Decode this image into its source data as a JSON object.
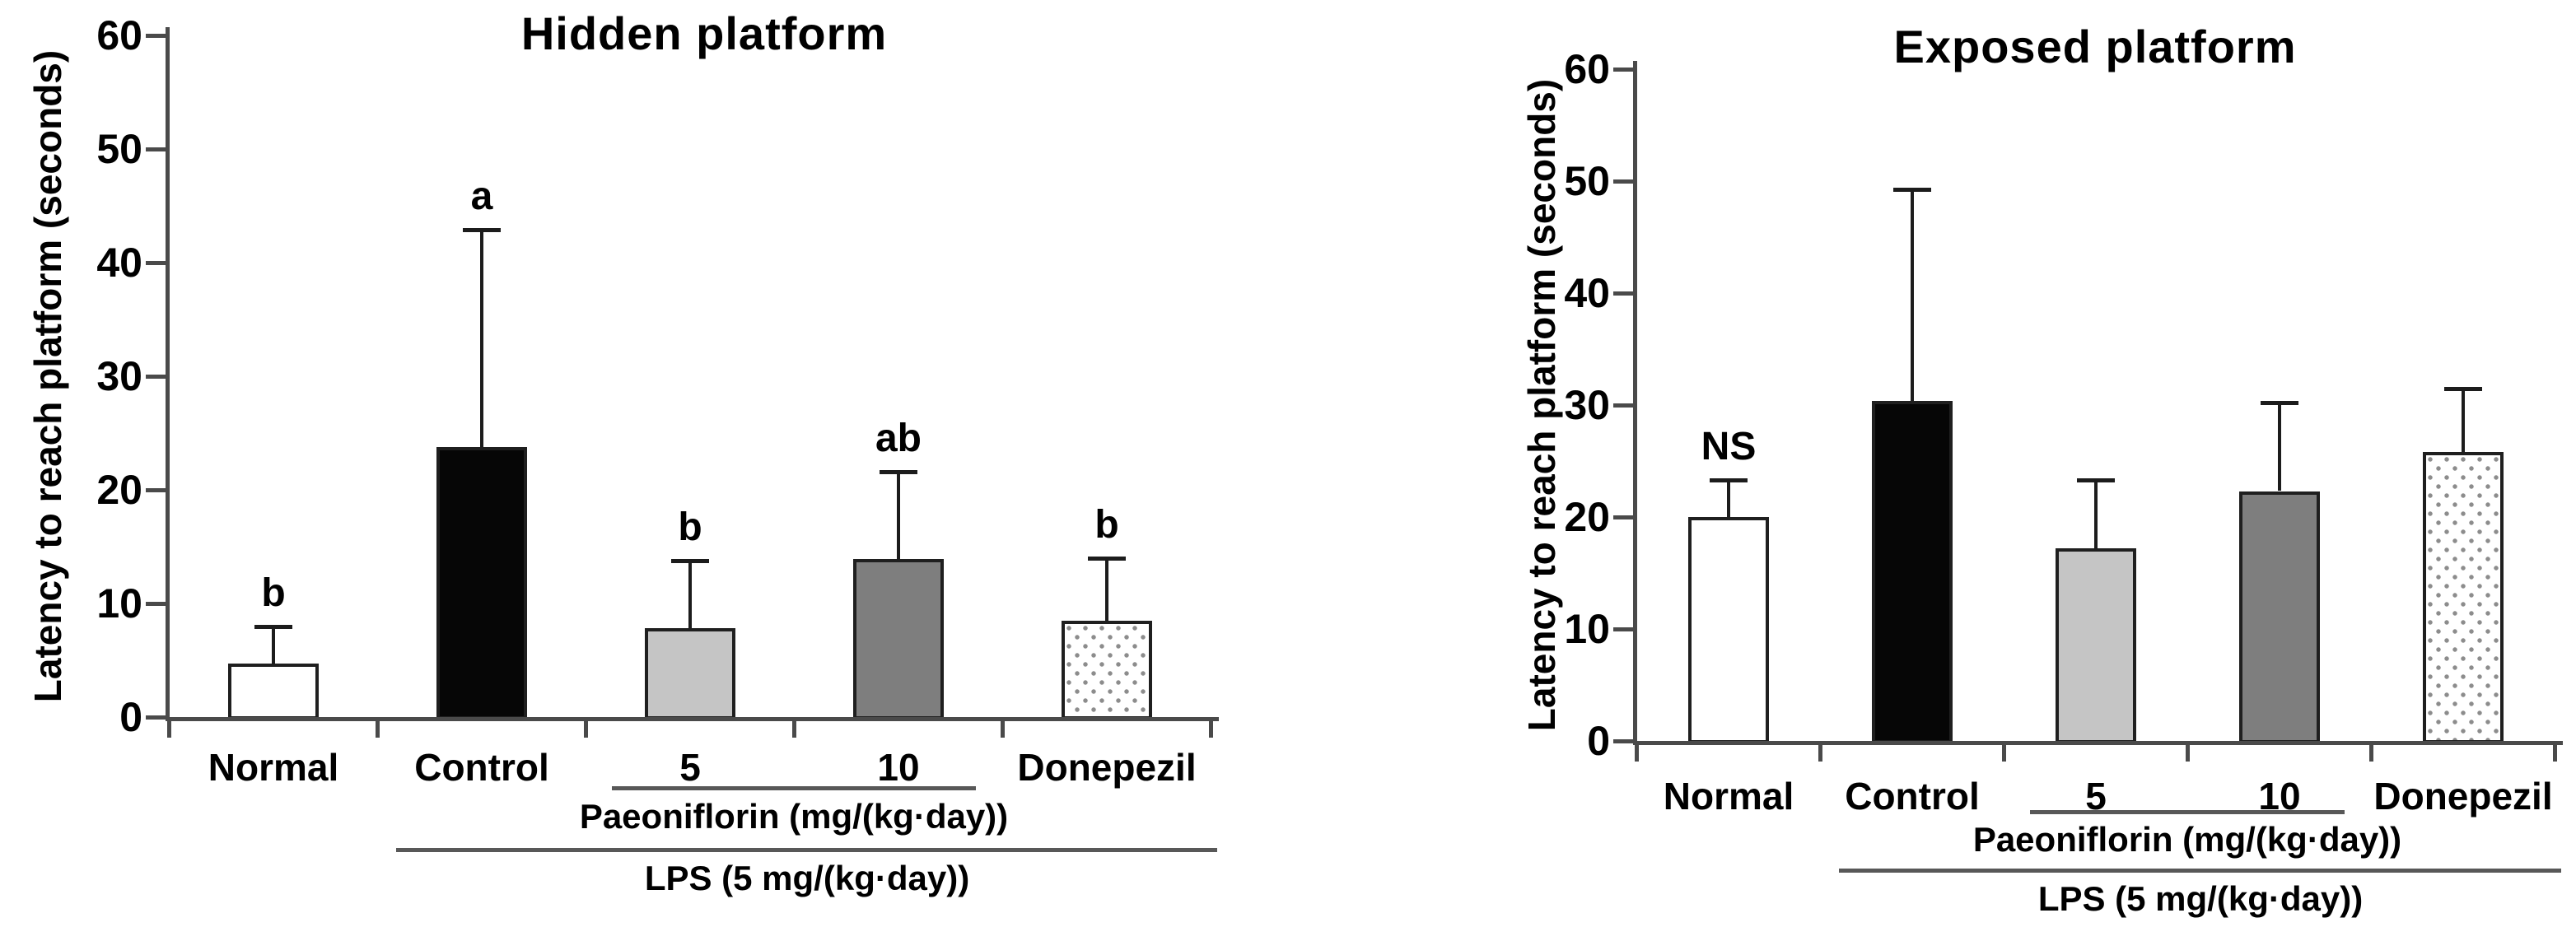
{
  "figure": {
    "panel_titles": [
      "Hidden platform",
      "Exposed platform"
    ]
  },
  "colors": {
    "text": "#000000",
    "axis": "#4a4a4a",
    "error_bar": "#1c1c1c",
    "bar_border": "#1f1f1f",
    "bar_black": "#060606",
    "bar_white": "#ffffff",
    "bar_light_gray": "#c5c5c5",
    "bar_dark_gray": "#7e7e7e",
    "dot_pattern": "#8c8c8c",
    "annotation_line": "#585858"
  },
  "chart_data": [
    {
      "type": "bar",
      "title": "Hidden platform",
      "ylabel": "Latency to reach platform (seconds)",
      "xlabel": "",
      "ylim": [
        0,
        60
      ],
      "yticks": [
        0,
        10,
        20,
        30,
        40,
        50,
        60
      ],
      "grid": false,
      "legend": "none",
      "categories": [
        "Normal",
        "Control",
        "5",
        "10",
        "Donepezil"
      ],
      "values": [
        4.7,
        23.8,
        7.8,
        13.9,
        8.5
      ],
      "error_bar_tops": [
        8.0,
        42.9,
        13.8,
        21.6,
        14.0
      ],
      "significance_labels": [
        "b",
        "a",
        "b",
        "ab",
        "b"
      ],
      "bar_fill_styles": [
        "white",
        "solid-black",
        "light-gray",
        "dark-gray",
        "white-dotted"
      ],
      "group_annotations": [
        {
          "label": "Paeoniflorin (mg/(kg·day))",
          "from_category": "5",
          "to_category": "10"
        },
        {
          "label": "LPS (5 mg/(kg·day))",
          "from_category": "Control",
          "to_category": "Donepezil"
        }
      ]
    },
    {
      "type": "bar",
      "title": "Exposed platform",
      "ylabel": "Latency to reach platform (seconds)",
      "xlabel": "",
      "ylim": [
        0,
        60
      ],
      "yticks": [
        0,
        10,
        20,
        30,
        40,
        50,
        60
      ],
      "grid": false,
      "legend": "none",
      "categories": [
        "Normal",
        "Control",
        "5",
        "10",
        "Donepezil"
      ],
      "values": [
        20.0,
        30.4,
        17.2,
        22.3,
        25.8
      ],
      "error_bar_tops": [
        23.3,
        49.3,
        23.3,
        30.2,
        31.5
      ],
      "significance_labels": [
        "NS",
        "",
        "",
        "",
        ""
      ],
      "bar_fill_styles": [
        "white",
        "solid-black",
        "light-gray",
        "dark-gray",
        "white-dotted"
      ],
      "group_annotations": [
        {
          "label": "Paeoniflorin (mg/(kg·day))",
          "from_category": "5",
          "to_category": "10"
        },
        {
          "label": "LPS (5 mg/(kg·day))",
          "from_category": "Control",
          "to_category": "Donepezil"
        }
      ]
    }
  ]
}
